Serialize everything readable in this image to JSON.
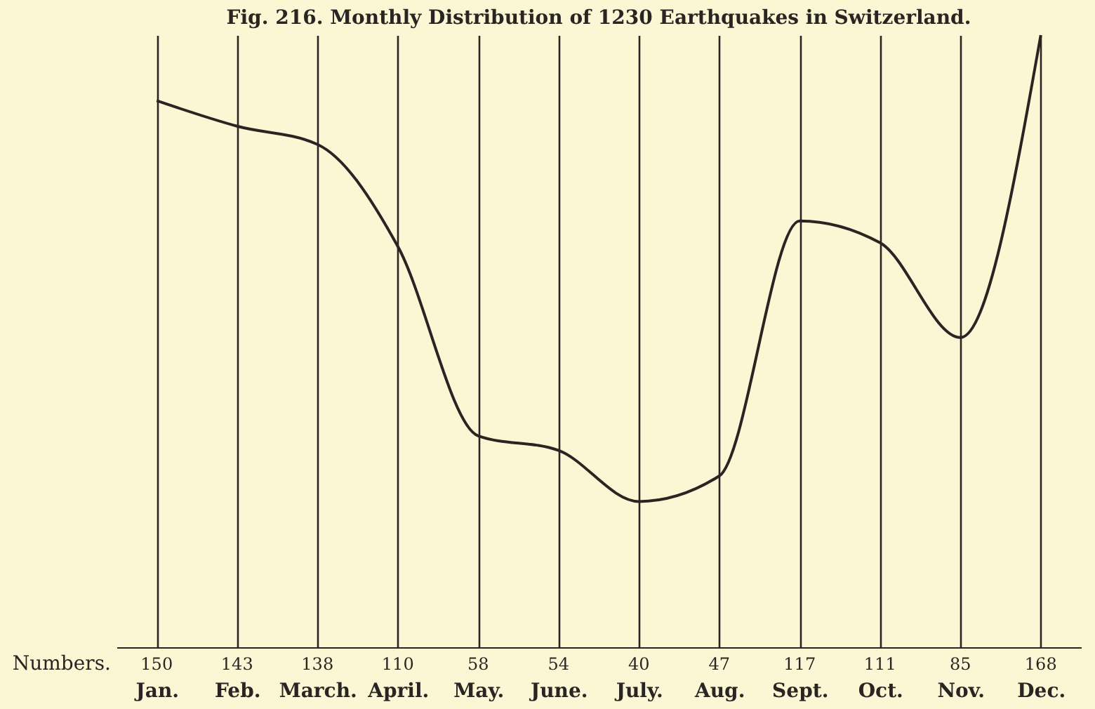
{
  "chart_data": {
    "type": "line",
    "title": "Fig. 216. Monthly Distribution of 1230 Earthquakes in Switzerland.",
    "categories": [
      "Jan.",
      "Feb.",
      "March.",
      "April.",
      "May.",
      "June.",
      "July.",
      "Aug.",
      "Sept.",
      "Oct.",
      "Nov.",
      "Dec."
    ],
    "series": [
      {
        "color": "#2a2522",
        "values": [
          150,
          143,
          138,
          110,
          58,
          54,
          40,
          47,
          117,
          111,
          85,
          168
        ]
      }
    ],
    "data_labels": true,
    "grid": "x",
    "marker": "none",
    "line_style": "solid",
    "annotations": [
      "Numbers."
    ]
  }
}
